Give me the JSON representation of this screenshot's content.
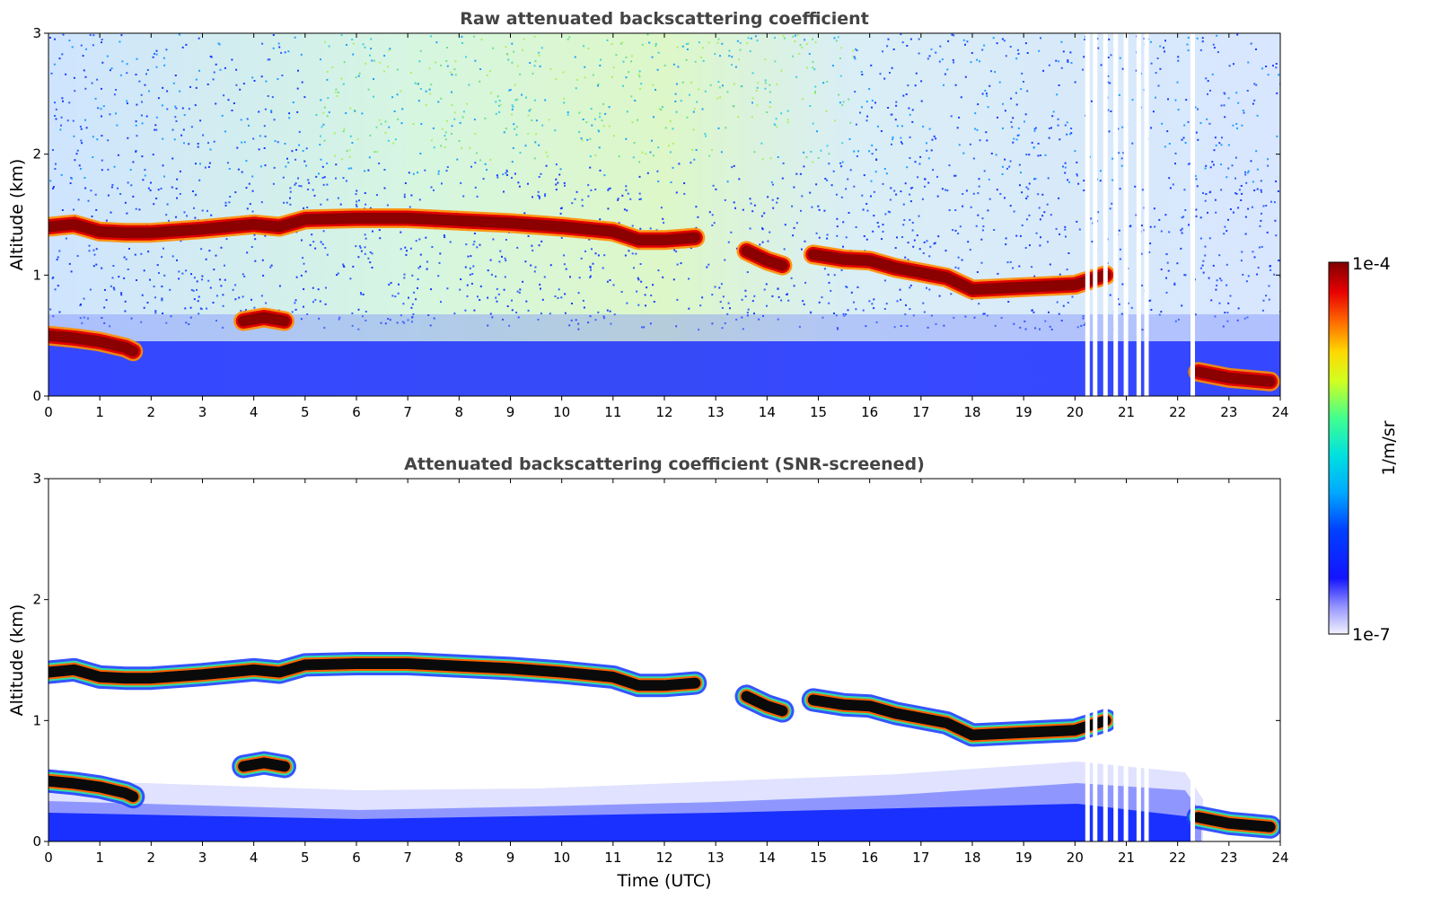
{
  "chart_data": [
    {
      "type": "heatmap",
      "title": "Raw attenuated backscattering coefficient",
      "xlabel": "",
      "ylabel": "Altitude (km)",
      "xlim": [
        0,
        24
      ],
      "ylim": [
        0,
        3
      ],
      "x_ticks": [
        "0",
        "1",
        "2",
        "3",
        "4",
        "5",
        "6",
        "7",
        "8",
        "9",
        "10",
        "11",
        "12",
        "13",
        "14",
        "15",
        "16",
        "17",
        "18",
        "19",
        "20",
        "21",
        "22",
        "23",
        "24"
      ],
      "y_ticks": [
        "0",
        "1",
        "2",
        "3"
      ],
      "cloud_layers": [
        {
          "x": [
            0.0,
            0.5,
            1.0,
            1.5,
            2.0,
            3.0,
            4.0,
            4.5,
            5.0,
            6.0,
            7.0,
            8.0,
            9.0,
            10.0,
            11.0,
            11.5,
            12.0,
            12.6
          ],
          "y": [
            1.4,
            1.42,
            1.36,
            1.35,
            1.35,
            1.38,
            1.42,
            1.4,
            1.46,
            1.47,
            1.47,
            1.45,
            1.43,
            1.4,
            1.36,
            1.29,
            1.29,
            1.31
          ]
        },
        {
          "x": [
            13.6,
            14.0,
            14.3
          ],
          "y": [
            1.2,
            1.12,
            1.08
          ]
        },
        {
          "x": [
            14.9,
            15.5,
            16.0,
            16.5,
            17.0,
            17.5,
            18.0,
            19.0,
            20.0,
            20.6
          ],
          "y": [
            1.17,
            1.13,
            1.12,
            1.06,
            1.02,
            0.98,
            0.88,
            0.9,
            0.92,
            1.0
          ]
        },
        {
          "x": [
            0.0,
            0.5,
            1.0,
            1.5,
            1.65
          ],
          "y": [
            0.5,
            0.48,
            0.45,
            0.4,
            0.37
          ]
        },
        {
          "x": [
            3.8,
            4.2,
            4.6
          ],
          "y": [
            0.62,
            0.65,
            0.62
          ]
        },
        {
          "x": [
            22.4,
            23.0,
            23.8
          ],
          "y": [
            0.2,
            0.15,
            0.12
          ]
        }
      ],
      "colorbar": {
        "label": "1/m/sr",
        "min": "1e-7",
        "max": "1e-4"
      }
    },
    {
      "type": "heatmap",
      "title": "Attenuated backscattering coefficient (SNR-screened)",
      "xlabel": "Time (UTC)",
      "ylabel": "Altitude (km)",
      "xlim": [
        0,
        24
      ],
      "ylim": [
        0,
        3
      ],
      "x_ticks": [
        "0",
        "1",
        "2",
        "3",
        "4",
        "5",
        "6",
        "7",
        "8",
        "9",
        "10",
        "11",
        "12",
        "13",
        "14",
        "15",
        "16",
        "17",
        "18",
        "19",
        "20",
        "21",
        "22",
        "23",
        "24"
      ],
      "y_ticks": [
        "0",
        "1",
        "2",
        "3"
      ],
      "colorbar": {
        "label": "1/m/sr",
        "min": "1e-7",
        "max": "1e-4"
      }
    }
  ]
}
